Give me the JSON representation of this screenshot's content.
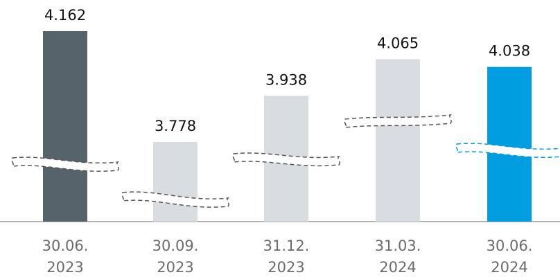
{
  "chart_data": {
    "type": "bar",
    "categories": [
      "30.06. 2023",
      "30.09. 2023",
      "31.12. 2023",
      "31.03. 2024",
      "30.06. 2024"
    ],
    "values": [
      4162,
      3778,
      3938,
      4065,
      4038
    ],
    "value_labels": [
      "4.162",
      "3.778",
      "3.938",
      "4.065",
      "4.038"
    ],
    "colors": [
      "#56636b",
      "#d9dde1",
      "#d9dde1",
      "#d9dde1",
      "#009ee0"
    ]
  }
}
